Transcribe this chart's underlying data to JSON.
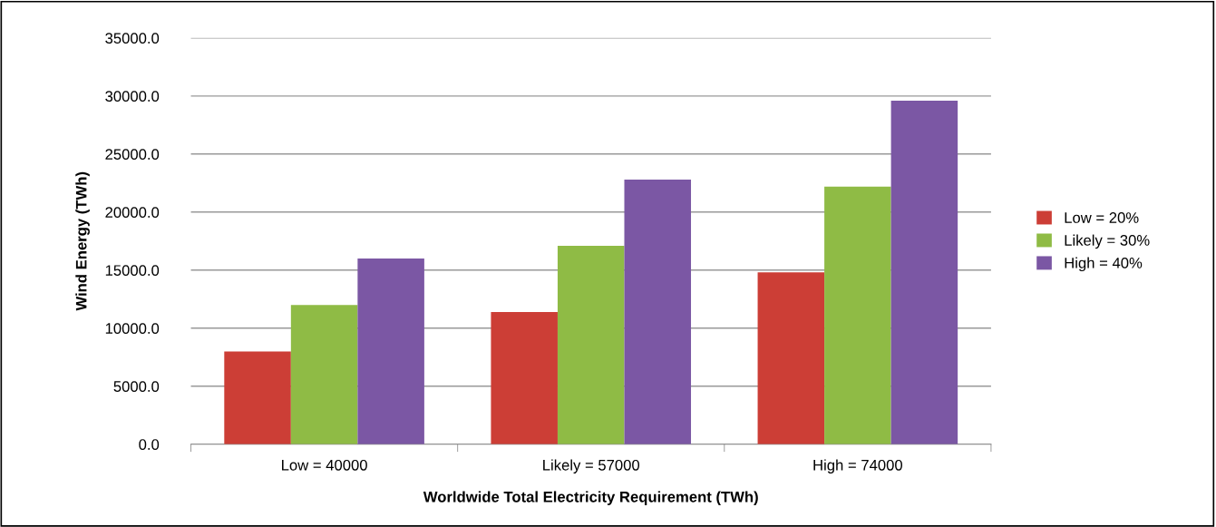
{
  "chart_data": {
    "type": "bar",
    "xlabel": "Worldwide Total Electricity Requirement (TWh)",
    "ylabel": "Wind Energy (TWh)",
    "categories": [
      "Low = 40000",
      "Likely = 57000",
      "High = 74000"
    ],
    "series": [
      {
        "name": "Low = 20%",
        "color": "#cc3e36",
        "values": [
          8000,
          11400,
          14800
        ]
      },
      {
        "name": "Likely = 30%",
        "color": "#8fbb45",
        "values": [
          12000,
          17100,
          22200
        ]
      },
      {
        "name": "High = 40%",
        "color": "#7b57a4",
        "values": [
          16000,
          22800,
          29600
        ]
      }
    ],
    "ylim": [
      0,
      35000
    ],
    "yticks": [
      {
        "value": 0,
        "label": "0.0"
      },
      {
        "value": 5000,
        "label": "5000.0"
      },
      {
        "value": 10000,
        "label": "10000.0"
      },
      {
        "value": 15000,
        "label": "15000.0"
      },
      {
        "value": 20000,
        "label": "20000.0"
      },
      {
        "value": 25000,
        "label": "25000.0"
      },
      {
        "value": 30000,
        "label": "30000.0"
      },
      {
        "value": 35000,
        "label": "35000.0"
      }
    ],
    "grid": "y",
    "legend": "right"
  }
}
